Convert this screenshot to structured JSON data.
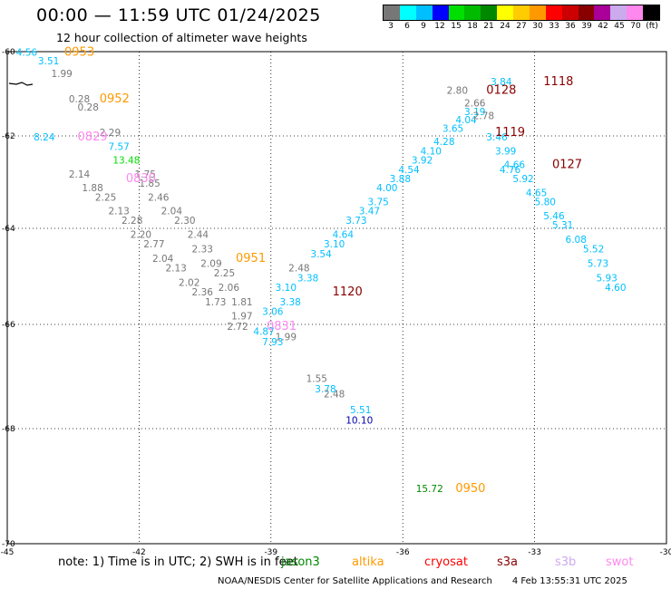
{
  "header": {
    "title": "00:00 — 11:59 UTC 01/24/2025",
    "subtitle": "12 hour collection of altimeter wave heights"
  },
  "legend": {
    "colors": [
      "#777777",
      "#00ffff",
      "#00bfff",
      "#0000ff",
      "#00e000",
      "#00bb00",
      "#008800",
      "#ffff00",
      "#ffcc00",
      "#ff9900",
      "#ff0000",
      "#cc0000",
      "#880000",
      "#aa0099",
      "#ccaaee",
      "#ff88ee",
      "#000000"
    ],
    "labels": [
      "3",
      "6",
      "9",
      "12",
      "15",
      "18",
      "21",
      "24",
      "27",
      "30",
      "33",
      "36",
      "39",
      "42",
      "45",
      "70",
      "(ft)"
    ]
  },
  "axes": {
    "lat_ticks": [
      "-60",
      "-62",
      "-64",
      "-66",
      "-68",
      "-70"
    ],
    "lon_ticks": [
      "-45",
      "-42",
      "-39",
      "-36",
      "-33",
      "-30"
    ]
  },
  "chart_data": {
    "type": "scatter",
    "lat_range": [
      -70,
      -60
    ],
    "lon_range": [
      -45,
      -30
    ],
    "points": [
      {
        "v": "4.56",
        "lon": -44.8,
        "lat": -60.1,
        "c": "#00bfff"
      },
      {
        "v": "3.51",
        "lon": -44.3,
        "lat": -60.3,
        "c": "#00bfff"
      },
      {
        "v": "1.99",
        "lon": -44.0,
        "lat": -60.6,
        "c": "#777777"
      },
      {
        "v": "0.28",
        "lon": -43.6,
        "lat": -61.2,
        "c": "#777777"
      },
      {
        "v": "0.28",
        "lon": -43.4,
        "lat": -61.4,
        "c": "#777777"
      },
      {
        "v": "8.24",
        "lon": -44.4,
        "lat": -62.1,
        "c": "#00bfff"
      },
      {
        "v": "2.29",
        "lon": -42.9,
        "lat": -62.0,
        "c": "#777777"
      },
      {
        "v": "7.57",
        "lon": -42.7,
        "lat": -62.3,
        "c": "#00bfff"
      },
      {
        "v": "13.48",
        "lon": -42.6,
        "lat": -62.6,
        "c": "#00e000"
      },
      {
        "v": "2.14",
        "lon": -43.6,
        "lat": -62.9,
        "c": "#777777"
      },
      {
        "v": "1.88",
        "lon": -43.3,
        "lat": -63.2,
        "c": "#777777"
      },
      {
        "v": "2.25",
        "lon": -43.0,
        "lat": -63.4,
        "c": "#777777"
      },
      {
        "v": "2.13",
        "lon": -42.7,
        "lat": -63.7,
        "c": "#777777"
      },
      {
        "v": "2.28",
        "lon": -42.4,
        "lat": -63.9,
        "c": "#777777"
      },
      {
        "v": "2.20",
        "lon": -42.2,
        "lat": -64.2,
        "c": "#777777"
      },
      {
        "v": "2.77",
        "lon": -41.9,
        "lat": -64.4,
        "c": "#777777"
      },
      {
        "v": "2.04",
        "lon": -41.7,
        "lat": -64.7,
        "c": "#777777"
      },
      {
        "v": "2.13",
        "lon": -41.4,
        "lat": -64.9,
        "c": "#777777"
      },
      {
        "v": "2.02",
        "lon": -41.1,
        "lat": -65.2,
        "c": "#777777"
      },
      {
        "v": "2.36",
        "lon": -40.8,
        "lat": -65.4,
        "c": "#777777"
      },
      {
        "v": "1.73",
        "lon": -40.5,
        "lat": -65.6,
        "c": "#777777"
      },
      {
        "v": "1.97",
        "lon": -39.9,
        "lat": -65.9,
        "c": "#777777"
      },
      {
        "v": "2.72",
        "lon": -40.0,
        "lat": -66.1,
        "c": "#777777"
      },
      {
        "v": "1.75",
        "lon": -42.1,
        "lat": -62.9,
        "c": "#777777"
      },
      {
        "v": "1.85",
        "lon": -42.0,
        "lat": -63.1,
        "c": "#777777"
      },
      {
        "v": "2.46",
        "lon": -41.8,
        "lat": -63.4,
        "c": "#777777"
      },
      {
        "v": "2.04",
        "lon": -41.5,
        "lat": -63.7,
        "c": "#777777"
      },
      {
        "v": "2.30",
        "lon": -41.2,
        "lat": -63.9,
        "c": "#777777"
      },
      {
        "v": "2.44",
        "lon": -40.9,
        "lat": -64.2,
        "c": "#777777"
      },
      {
        "v": "2.33",
        "lon": -40.8,
        "lat": -64.5,
        "c": "#777777"
      },
      {
        "v": "2.09",
        "lon": -40.6,
        "lat": -64.8,
        "c": "#777777"
      },
      {
        "v": "2.25",
        "lon": -40.3,
        "lat": -65.0,
        "c": "#777777"
      },
      {
        "v": "2.06",
        "lon": -40.2,
        "lat": -65.3,
        "c": "#777777"
      },
      {
        "v": "1.81",
        "lon": -39.9,
        "lat": -65.6,
        "c": "#777777"
      },
      {
        "v": "2.48",
        "lon": -38.6,
        "lat": -64.9,
        "c": "#777777"
      },
      {
        "v": "1.99",
        "lon": -38.9,
        "lat": -66.3,
        "c": "#777777"
      },
      {
        "v": "3.10",
        "lon": -38.9,
        "lat": -65.3,
        "c": "#00bfff"
      },
      {
        "v": "3.38",
        "lon": -38.8,
        "lat": -65.6,
        "c": "#00bfff"
      },
      {
        "v": "3.06",
        "lon": -39.2,
        "lat": -65.8,
        "c": "#00bfff"
      },
      {
        "v": "4.87",
        "lon": -39.4,
        "lat": -66.2,
        "c": "#00bfff"
      },
      {
        "v": "7.93",
        "lon": -39.2,
        "lat": -66.4,
        "c": "#00bfff"
      },
      {
        "v": "3.38",
        "lon": -38.4,
        "lat": -65.1,
        "c": "#00bfff"
      },
      {
        "v": "3.54",
        "lon": -38.1,
        "lat": -64.6,
        "c": "#00bfff"
      },
      {
        "v": "3.10",
        "lon": -37.8,
        "lat": -64.4,
        "c": "#00bfff"
      },
      {
        "v": "4.64",
        "lon": -37.6,
        "lat": -64.2,
        "c": "#00bfff"
      },
      {
        "v": "3.73",
        "lon": -37.3,
        "lat": -63.9,
        "c": "#00bfff"
      },
      {
        "v": "3.47",
        "lon": -37.0,
        "lat": -63.7,
        "c": "#00bfff"
      },
      {
        "v": "3.75",
        "lon": -36.8,
        "lat": -63.5,
        "c": "#00bfff"
      },
      {
        "v": "4.00",
        "lon": -36.6,
        "lat": -63.2,
        "c": "#00bfff"
      },
      {
        "v": "3.88",
        "lon": -36.3,
        "lat": -63.0,
        "c": "#00bfff"
      },
      {
        "v": "4.54",
        "lon": -36.1,
        "lat": -62.8,
        "c": "#00bfff"
      },
      {
        "v": "3.92",
        "lon": -35.8,
        "lat": -62.6,
        "c": "#00bfff"
      },
      {
        "v": "4.10",
        "lon": -35.6,
        "lat": -62.4,
        "c": "#00bfff"
      },
      {
        "v": "4.28",
        "lon": -35.3,
        "lat": -62.2,
        "c": "#00bfff"
      },
      {
        "v": "3.65",
        "lon": -35.1,
        "lat": -61.9,
        "c": "#00bfff"
      },
      {
        "v": "4.04",
        "lon": -34.8,
        "lat": -61.7,
        "c": "#00bfff"
      },
      {
        "v": "3.19",
        "lon": -34.6,
        "lat": -61.5,
        "c": "#00bfff"
      },
      {
        "v": "2.66",
        "lon": -34.6,
        "lat": -61.3,
        "c": "#777777"
      },
      {
        "v": "2.78",
        "lon": -34.4,
        "lat": -61.6,
        "c": "#777777"
      },
      {
        "v": "2.80",
        "lon": -35.0,
        "lat": -61.0,
        "c": "#777777"
      },
      {
        "v": "3.84",
        "lon": -34.0,
        "lat": -60.8,
        "c": "#00bfff"
      },
      {
        "v": "3.46",
        "lon": -34.1,
        "lat": -62.1,
        "c": "#00bfff"
      },
      {
        "v": "3.99",
        "lon": -33.9,
        "lat": -62.4,
        "c": "#00bfff"
      },
      {
        "v": "4.66",
        "lon": -33.7,
        "lat": -62.7,
        "c": "#00bfff"
      },
      {
        "v": "4.76",
        "lon": -33.8,
        "lat": -62.8,
        "c": "#00bfff"
      },
      {
        "v": "5.92",
        "lon": -33.5,
        "lat": -63.0,
        "c": "#00bfff"
      },
      {
        "v": "4.65",
        "lon": -33.2,
        "lat": -63.3,
        "c": "#00bfff"
      },
      {
        "v": "5.80",
        "lon": -33.0,
        "lat": -63.5,
        "c": "#00bfff"
      },
      {
        "v": "5.46",
        "lon": -32.8,
        "lat": -63.8,
        "c": "#00bfff"
      },
      {
        "v": "5.31",
        "lon": -32.6,
        "lat": -64.0,
        "c": "#00bfff"
      },
      {
        "v": "6.08",
        "lon": -32.3,
        "lat": -64.3,
        "c": "#00bfff"
      },
      {
        "v": "5.52",
        "lon": -31.9,
        "lat": -64.5,
        "c": "#00bfff"
      },
      {
        "v": "5.73",
        "lon": -31.8,
        "lat": -64.8,
        "c": "#00bfff"
      },
      {
        "v": "5.93",
        "lon": -31.6,
        "lat": -65.1,
        "c": "#00bfff"
      },
      {
        "v": "4.60",
        "lon": -31.4,
        "lat": -65.3,
        "c": "#00bfff"
      },
      {
        "v": "1.55",
        "lon": -38.2,
        "lat": -67.1,
        "c": "#777777"
      },
      {
        "v": "3.78",
        "lon": -38.0,
        "lat": -67.3,
        "c": "#00bfff"
      },
      {
        "v": "2.48",
        "lon": -37.8,
        "lat": -67.4,
        "c": "#777777"
      },
      {
        "v": "5.51",
        "lon": -37.2,
        "lat": -67.7,
        "c": "#00bfff"
      },
      {
        "v": "10.10",
        "lon": -37.3,
        "lat": -67.9,
        "c": "#0000aa"
      },
      {
        "v": "15.72",
        "lon": -35.7,
        "lat": -69.1,
        "c": "#008800"
      }
    ],
    "pass_labels": [
      {
        "t": "0953",
        "lon": -43.7,
        "lat": -60.1,
        "c": "#ff9900"
      },
      {
        "t": "0952",
        "lon": -42.9,
        "lat": -61.2,
        "c": "#ff9900"
      },
      {
        "t": "0829",
        "lon": -43.4,
        "lat": -62.1,
        "c": "#ff88ee"
      },
      {
        "t": "0830",
        "lon": -42.3,
        "lat": -63.0,
        "c": "#ff88ee"
      },
      {
        "t": "0951",
        "lon": -39.8,
        "lat": -64.7,
        "c": "#ff9900"
      },
      {
        "t": "0831",
        "lon": -39.1,
        "lat": -66.1,
        "c": "#ff88ee"
      },
      {
        "t": "1120",
        "lon": -37.6,
        "lat": -65.4,
        "c": "#880000"
      },
      {
        "t": "0128",
        "lon": -34.1,
        "lat": -61.0,
        "c": "#880000"
      },
      {
        "t": "1118",
        "lon": -32.8,
        "lat": -60.8,
        "c": "#880000"
      },
      {
        "t": "1119",
        "lon": -33.9,
        "lat": -62.0,
        "c": "#880000"
      },
      {
        "t": "0127",
        "lon": -32.6,
        "lat": -62.7,
        "c": "#880000"
      },
      {
        "t": "0950",
        "lon": -34.8,
        "lat": -69.1,
        "c": "#ff9900"
      }
    ]
  },
  "note": {
    "text": "note:  1) Time is in UTC;  2) SWH is in feet",
    "missions": [
      {
        "name": "jason3",
        "color": "#008800"
      },
      {
        "name": "altika",
        "color": "#ff9900"
      },
      {
        "name": "cryosat",
        "color": "#ff0000"
      },
      {
        "name": "s3a",
        "color": "#880000"
      },
      {
        "name": "s3b",
        "color": "#ccaaee"
      },
      {
        "name": "swot",
        "color": "#ff88ee"
      }
    ]
  },
  "footer": {
    "credit": "NOAA/NESDIS Center for Satellite Applications and Research",
    "timestamp": "4 Feb 13:55:31 UTC 2025"
  }
}
